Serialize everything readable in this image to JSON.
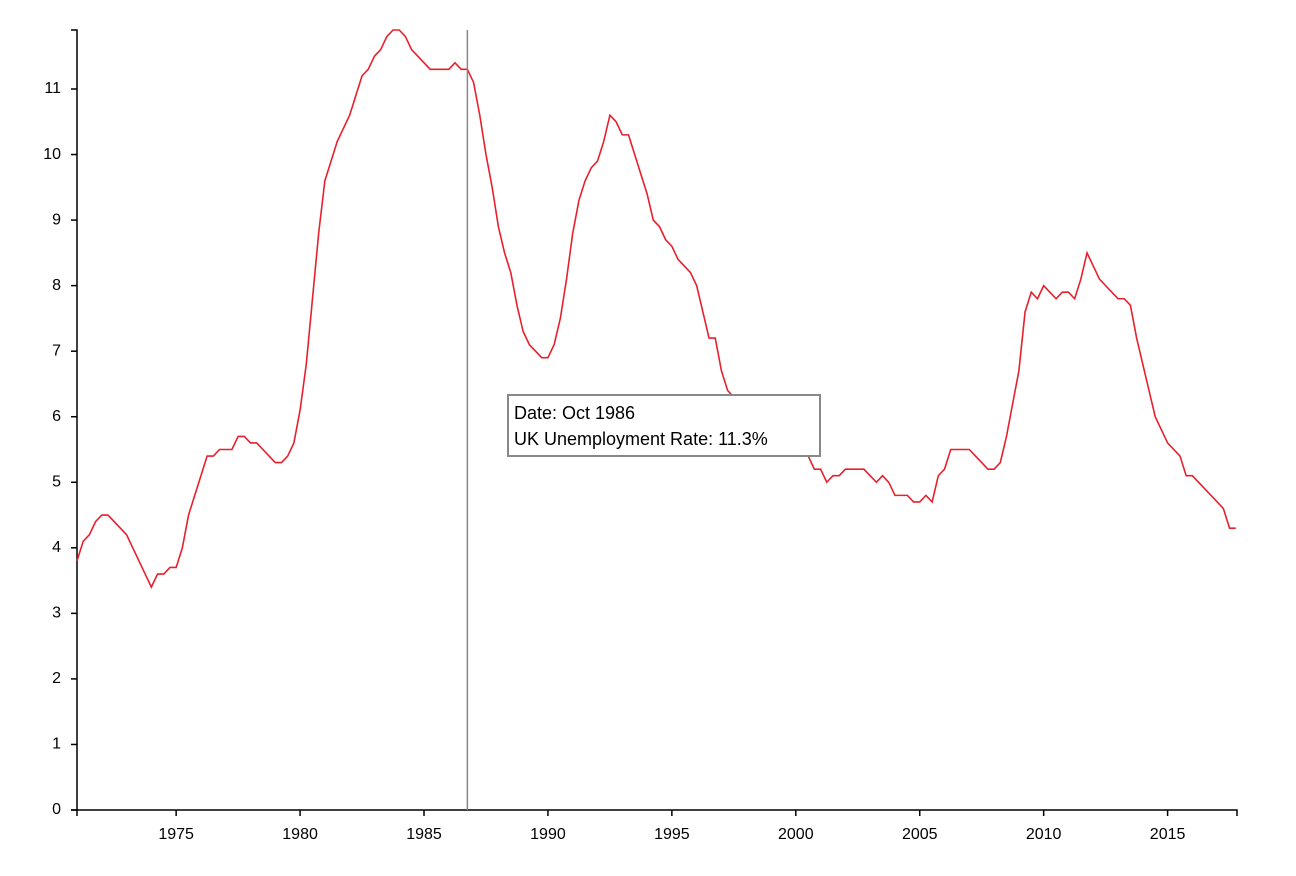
{
  "chart_data": {
    "type": "line",
    "color": "#e8202e",
    "xlim": [
      1971,
      2017.8
    ],
    "ylim": [
      0,
      11.9
    ],
    "xticks": [
      1975,
      1980,
      1985,
      1990,
      1995,
      2000,
      2005,
      2010,
      2015
    ],
    "yticks": [
      0,
      1,
      2,
      3,
      4,
      5,
      6,
      7,
      8,
      9,
      10,
      11
    ],
    "x": [
      1971,
      1971.25,
      1971.5,
      1971.75,
      1972,
      1972.25,
      1972.5,
      1972.75,
      1973,
      1973.25,
      1973.5,
      1973.75,
      1974,
      1974.25,
      1974.5,
      1974.75,
      1975,
      1975.25,
      1975.5,
      1975.75,
      1976,
      1976.25,
      1976.5,
      1976.75,
      1977,
      1977.25,
      1977.5,
      1977.75,
      1978,
      1978.25,
      1978.5,
      1978.75,
      1979,
      1979.25,
      1979.5,
      1979.75,
      1980,
      1980.25,
      1980.5,
      1980.75,
      1981,
      1981.25,
      1981.5,
      1981.75,
      1982,
      1982.25,
      1982.5,
      1982.75,
      1983,
      1983.25,
      1983.5,
      1983.75,
      1984,
      1984.25,
      1984.5,
      1984.75,
      1985,
      1985.25,
      1985.5,
      1985.75,
      1986,
      1986.25,
      1986.5,
      1986.75,
      1987,
      1987.25,
      1987.5,
      1987.75,
      1988,
      1988.25,
      1988.5,
      1988.75,
      1989,
      1989.25,
      1989.5,
      1989.75,
      1990,
      1990.25,
      1990.5,
      1990.75,
      1991,
      1991.25,
      1991.5,
      1991.75,
      1992,
      1992.25,
      1992.5,
      1992.75,
      1993,
      1993.25,
      1993.5,
      1993.75,
      1994,
      1994.25,
      1994.5,
      1994.75,
      1995,
      1995.25,
      1995.5,
      1995.75,
      1996,
      1996.25,
      1996.5,
      1996.75,
      1997,
      1997.25,
      1997.5,
      1997.75,
      1998,
      1998.25,
      1998.5,
      1998.75,
      1999,
      1999.25,
      1999.5,
      1999.75,
      2000,
      2000.25,
      2000.5,
      2000.75,
      2001,
      2001.25,
      2001.5,
      2001.75,
      2002,
      2002.25,
      2002.5,
      2002.75,
      2003,
      2003.25,
      2003.5,
      2003.75,
      2004,
      2004.25,
      2004.5,
      2004.75,
      2005,
      2005.25,
      2005.5,
      2005.75,
      2006,
      2006.25,
      2006.5,
      2006.75,
      2007,
      2007.25,
      2007.5,
      2007.75,
      2008,
      2008.25,
      2008.5,
      2008.75,
      2009,
      2009.25,
      2009.5,
      2009.75,
      2010,
      2010.25,
      2010.5,
      2010.75,
      2011,
      2011.25,
      2011.5,
      2011.75,
      2012,
      2012.25,
      2012.5,
      2012.75,
      2013,
      2013.25,
      2013.5,
      2013.75,
      2014,
      2014.25,
      2014.5,
      2014.75,
      2015,
      2015.25,
      2015.5,
      2015.75,
      2016,
      2016.25,
      2016.5,
      2016.75,
      2017,
      2017.25,
      2017.5,
      2017.75
    ],
    "values": [
      3.8,
      4.1,
      4.2,
      4.4,
      4.5,
      4.5,
      4.4,
      4.3,
      4.2,
      4.0,
      3.8,
      3.6,
      3.4,
      3.6,
      3.6,
      3.7,
      3.7,
      4.0,
      4.5,
      4.8,
      5.1,
      5.4,
      5.4,
      5.5,
      5.5,
      5.5,
      5.7,
      5.7,
      5.6,
      5.6,
      5.5,
      5.4,
      5.3,
      5.3,
      5.4,
      5.6,
      6.1,
      6.8,
      7.8,
      8.8,
      9.6,
      9.9,
      10.2,
      10.4,
      10.6,
      10.9,
      11.2,
      11.3,
      11.5,
      11.6,
      11.8,
      11.9,
      11.9,
      11.8,
      11.6,
      11.5,
      11.4,
      11.3,
      11.3,
      11.3,
      11.3,
      11.4,
      11.3,
      11.3,
      11.1,
      10.6,
      10.0,
      9.5,
      8.9,
      8.5,
      8.2,
      7.7,
      7.3,
      7.1,
      7.0,
      6.9,
      6.9,
      7.1,
      7.5,
      8.1,
      8.8,
      9.3,
      9.6,
      9.8,
      9.9,
      10.2,
      10.6,
      10.5,
      10.3,
      10.3,
      10.0,
      9.7,
      9.4,
      9.0,
      8.9,
      8.7,
      8.6,
      8.4,
      8.3,
      8.2,
      8.0,
      7.6,
      7.2,
      7.2,
      6.7,
      6.4,
      6.3,
      6.1,
      6.0,
      5.9,
      5.8,
      5.8,
      5.7,
      5.6,
      5.6,
      5.5,
      5.5,
      5.4,
      5.4,
      5.2,
      5.2,
      5.0,
      5.1,
      5.1,
      5.2,
      5.2,
      5.2,
      5.2,
      5.1,
      5.0,
      5.1,
      5.0,
      4.8,
      4.8,
      4.8,
      4.7,
      4.7,
      4.8,
      4.7,
      5.1,
      5.2,
      5.5,
      5.5,
      5.5,
      5.5,
      5.4,
      5.3,
      5.2,
      5.2,
      5.3,
      5.7,
      6.2,
      6.7,
      7.6,
      7.9,
      7.8,
      8.0,
      7.9,
      7.8,
      7.9,
      7.9,
      7.8,
      8.1,
      8.5,
      8.3,
      8.1,
      8.0,
      7.9,
      7.8,
      7.8,
      7.7,
      7.2,
      6.8,
      6.4,
      6.0,
      5.8,
      5.6,
      5.5,
      5.4,
      5.1,
      5.1,
      5.0,
      4.9,
      4.8,
      4.7,
      4.6,
      4.3,
      4.3
    ],
    "tooltip": {
      "x": 1986.75,
      "lines": [
        "Date: Oct 1986",
        "UK Unemployment Rate: 11.3%"
      ]
    }
  }
}
